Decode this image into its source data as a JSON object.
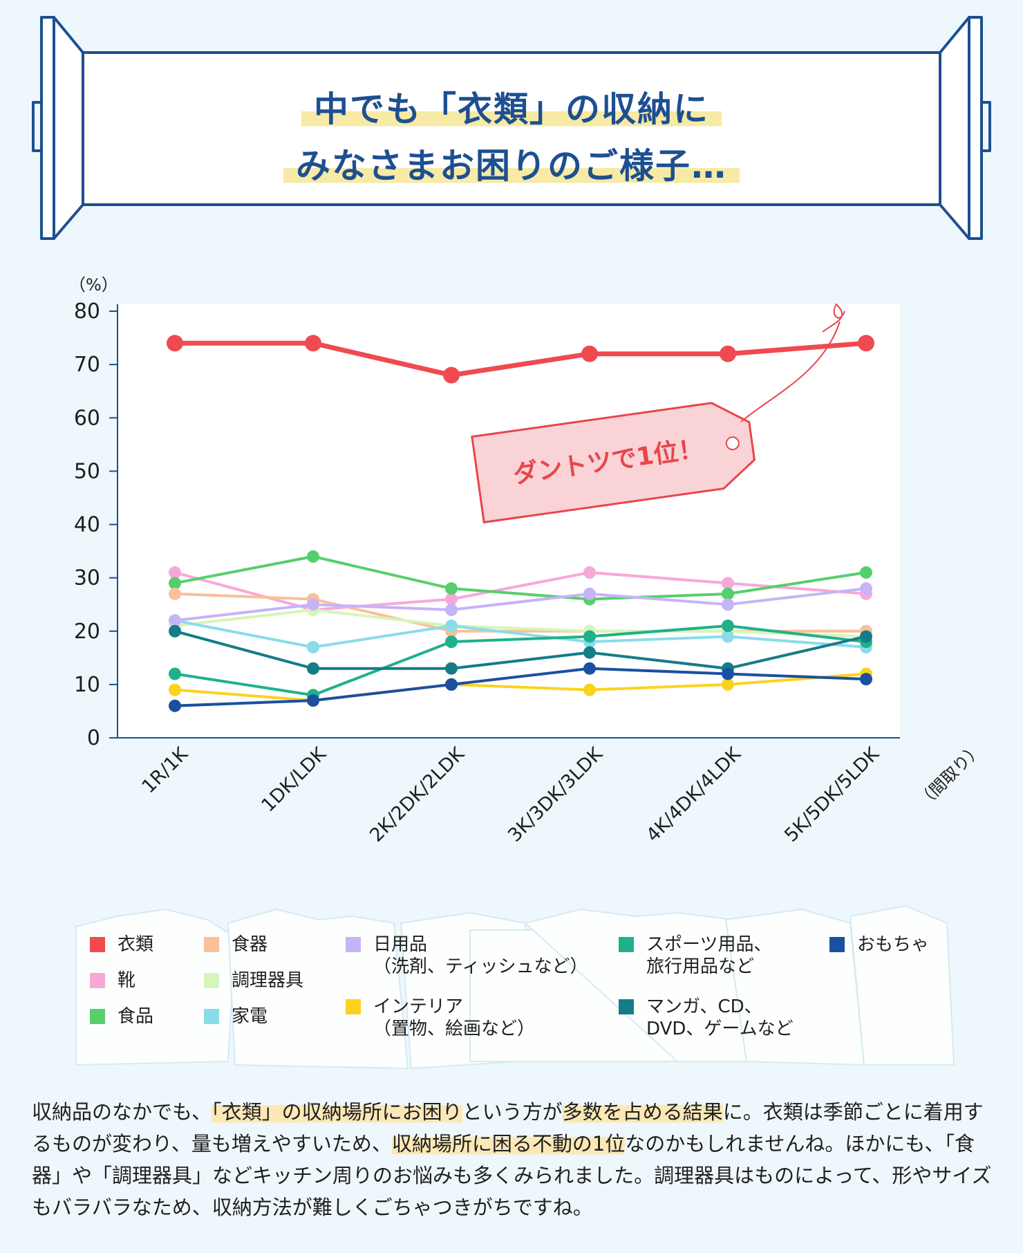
{
  "title": {
    "line1": "中でも「衣類」の収納に",
    "line2": "みなさまお困りのご様子…"
  },
  "colors": {
    "title": "#1d4f91",
    "frame": "#1d4f91",
    "highlight_title": "#f6eaa6",
    "highlight_body": "#fbe8b6",
    "tag_fill": "#f9d3d5",
    "tag_stroke": "#e8454c"
  },
  "annotation": {
    "tag_text": "ダントツで1位！"
  },
  "chart_data": {
    "type": "line",
    "title": "",
    "ylabel": "（%）",
    "xlabel": "（間取り）",
    "ylim": [
      0,
      80
    ],
    "yticks": [
      0,
      10,
      20,
      30,
      40,
      50,
      60,
      70,
      80
    ],
    "categories": [
      "1R/1K",
      "1DK/LDK",
      "2K/2DK/2LDK",
      "3K/3DK/3LDK",
      "4K/4DK/4LDK",
      "5K/5DK/5LDK"
    ],
    "series": [
      {
        "name": "衣類",
        "color": "#ef4a50",
        "values": [
          74,
          74,
          68,
          72,
          72,
          74
        ],
        "emphasis": true
      },
      {
        "name": "靴",
        "color": "#f8a8d8",
        "values": [
          31,
          24,
          26,
          31,
          29,
          27
        ]
      },
      {
        "name": "食品",
        "color": "#55cf6b",
        "values": [
          29,
          34,
          28,
          26,
          27,
          31
        ]
      },
      {
        "name": "食器",
        "color": "#f9c09a",
        "values": [
          27,
          26,
          20,
          20,
          20,
          20
        ]
      },
      {
        "name": "調理器具",
        "color": "#d6f5b8",
        "values": [
          21,
          24,
          21,
          20,
          20,
          19
        ]
      },
      {
        "name": "家電",
        "color": "#8adcea",
        "values": [
          22,
          17,
          21,
          18,
          19,
          17
        ]
      },
      {
        "name": "日用品（洗剤、ティッシュなど）",
        "color": "#c7b3f7",
        "values": [
          22,
          25,
          24,
          27,
          25,
          28
        ]
      },
      {
        "name": "インテリア（置物、絵画など）",
        "color": "#fcd21e",
        "values": [
          9,
          7,
          10,
          9,
          10,
          12
        ]
      },
      {
        "name": "スポーツ用品、旅行用品など",
        "color": "#1fb08c",
        "values": [
          12,
          8,
          18,
          19,
          21,
          18
        ]
      },
      {
        "name": "マンガ、CD、DVD、ゲームなど",
        "color": "#157c88",
        "values": [
          20,
          13,
          13,
          16,
          13,
          19
        ]
      },
      {
        "name": "おもちゃ",
        "color": "#1b4fa0",
        "values": [
          6,
          7,
          10,
          13,
          12,
          11
        ]
      }
    ]
  },
  "legend": [
    {
      "label": "衣類",
      "label2": "",
      "color": "#ef4a50"
    },
    {
      "label": "靴",
      "label2": "",
      "color": "#f8a8d8"
    },
    {
      "label": "食品",
      "label2": "",
      "color": "#55cf6b"
    },
    {
      "label": "食器",
      "label2": "",
      "color": "#f9c09a"
    },
    {
      "label": "調理器具",
      "label2": "",
      "color": "#d6f5b8"
    },
    {
      "label": "家電",
      "label2": "",
      "color": "#8adcea"
    },
    {
      "label": "日用品",
      "label2": "（洗剤、ティッシュなど）",
      "color": "#c7b3f7"
    },
    {
      "label": "インテリア",
      "label2": "（置物、絵画など）",
      "color": "#fcd21e"
    },
    {
      "label": "スポーツ用品、",
      "label2": "旅行用品など",
      "color": "#1fb08c"
    },
    {
      "label": "マンガ、CD、",
      "label2": "DVD、ゲームなど",
      "color": "#157c88"
    },
    {
      "label": "おもちゃ",
      "label2": "",
      "color": "#1b4fa0"
    }
  ],
  "body": {
    "p1": "収納品のなかでも、",
    "h1": "「衣類」の収納場所にお困り",
    "p2": "という方が",
    "h2": "多数を占める結果",
    "p3": "に。衣類は季節ごとに着用するものが変わり、量も増えやすいため、",
    "h3": "収納場所に困る不動の1位",
    "p4": "なのかもしれませんね。ほかにも、「食器」や「調理器具」などキッチン周りのお悩みも多くみられました。調理器具はものによって、形やサイズもバラバラなため、収納方法が難しくごちゃつきがちですね。"
  }
}
